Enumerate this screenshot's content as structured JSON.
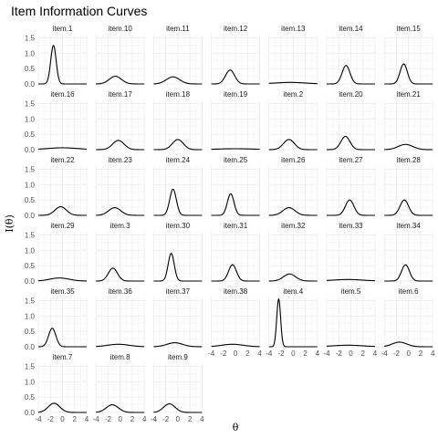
{
  "chart_data": {
    "type": "line",
    "title": "Item Information Curves",
    "xlabel": "θ",
    "ylabel": "I(θ)",
    "xlim": [
      -4,
      4
    ],
    "ylim": [
      0,
      1.6
    ],
    "x_ticks": [
      "-4",
      "-2",
      "0",
      "2",
      "4"
    ],
    "y_ticks": [
      "0.0",
      "0.5",
      "1.0",
      "1.5"
    ],
    "grid": true,
    "ncol": 7,
    "line_color": "#000000",
    "grid_color": "#ebebeb",
    "panels": [
      {
        "name": "item.1",
        "peak": 1.25,
        "location": -1.5,
        "width": 0.45
      },
      {
        "name": "item.10",
        "peak": 0.25,
        "location": -0.8,
        "width": 1.0
      },
      {
        "name": "item.11",
        "peak": 0.23,
        "location": -0.8,
        "width": 1.1
      },
      {
        "name": "item.12",
        "peak": 0.45,
        "location": -0.9,
        "width": 0.75
      },
      {
        "name": "item.13",
        "peak": 0.05,
        "location": -0.5,
        "width": 2.5
      },
      {
        "name": "item.14",
        "peak": 0.6,
        "location": -0.8,
        "width": 0.65
      },
      {
        "name": "item.15",
        "peak": 0.65,
        "location": -0.8,
        "width": 0.6
      },
      {
        "name": "item.16",
        "peak": 0.06,
        "location": 0.0,
        "width": 2.5
      },
      {
        "name": "item.17",
        "peak": 0.3,
        "location": -0.3,
        "width": 0.95
      },
      {
        "name": "item.18",
        "peak": 0.33,
        "location": 0.0,
        "width": 0.9
      },
      {
        "name": "item.19",
        "peak": 0.03,
        "location": 0.0,
        "width": 3.0
      },
      {
        "name": "item.2",
        "peak": 0.33,
        "location": -0.7,
        "width": 0.9
      },
      {
        "name": "item.20",
        "peak": 0.43,
        "location": -0.9,
        "width": 0.75
      },
      {
        "name": "item.21",
        "peak": 0.17,
        "location": -0.5,
        "width": 1.2
      },
      {
        "name": "item.22",
        "peak": 0.28,
        "location": -0.3,
        "width": 0.95
      },
      {
        "name": "item.23",
        "peak": 0.25,
        "location": -0.9,
        "width": 1.0
      },
      {
        "name": "item.24",
        "peak": 0.85,
        "location": -0.8,
        "width": 0.55
      },
      {
        "name": "item.25",
        "peak": 0.7,
        "location": -0.8,
        "width": 0.55
      },
      {
        "name": "item.26",
        "peak": 0.25,
        "location": -0.7,
        "width": 1.0
      },
      {
        "name": "item.27",
        "peak": 0.5,
        "location": -0.2,
        "width": 0.7
      },
      {
        "name": "item.28",
        "peak": 0.5,
        "location": -0.7,
        "width": 0.7
      },
      {
        "name": "item.29",
        "peak": 0.1,
        "location": -0.5,
        "width": 1.6
      },
      {
        "name": "item.3",
        "peak": 0.42,
        "location": -1.2,
        "width": 0.75
      },
      {
        "name": "item.30",
        "peak": 0.9,
        "location": -1.1,
        "width": 0.5
      },
      {
        "name": "item.31",
        "peak": 0.53,
        "location": -0.5,
        "width": 0.65
      },
      {
        "name": "item.32",
        "peak": 0.23,
        "location": -0.6,
        "width": 1.0
      },
      {
        "name": "item.33",
        "peak": 0.05,
        "location": -0.5,
        "width": 2.5
      },
      {
        "name": "item.34",
        "peak": 0.53,
        "location": -0.5,
        "width": 0.65
      },
      {
        "name": "item.35",
        "peak": 0.6,
        "location": -1.7,
        "width": 0.6
      },
      {
        "name": "item.36",
        "peak": 0.08,
        "location": -0.3,
        "width": 1.8
      },
      {
        "name": "item.37",
        "peak": 0.13,
        "location": -0.5,
        "width": 1.3
      },
      {
        "name": "item.38",
        "peak": 0.08,
        "location": -0.5,
        "width": 1.8
      },
      {
        "name": "item.4",
        "peak": 1.55,
        "location": -2.4,
        "width": 0.32
      },
      {
        "name": "item.5",
        "peak": 0.05,
        "location": -0.5,
        "width": 2.5
      },
      {
        "name": "item.6",
        "peak": 0.15,
        "location": -1.5,
        "width": 1.2
      },
      {
        "name": "item.7",
        "peak": 0.3,
        "location": -1.4,
        "width": 0.95
      },
      {
        "name": "item.8",
        "peak": 0.25,
        "location": -1.3,
        "width": 1.0
      },
      {
        "name": "item.9",
        "peak": 0.28,
        "location": -1.4,
        "width": 0.95
      }
    ]
  }
}
